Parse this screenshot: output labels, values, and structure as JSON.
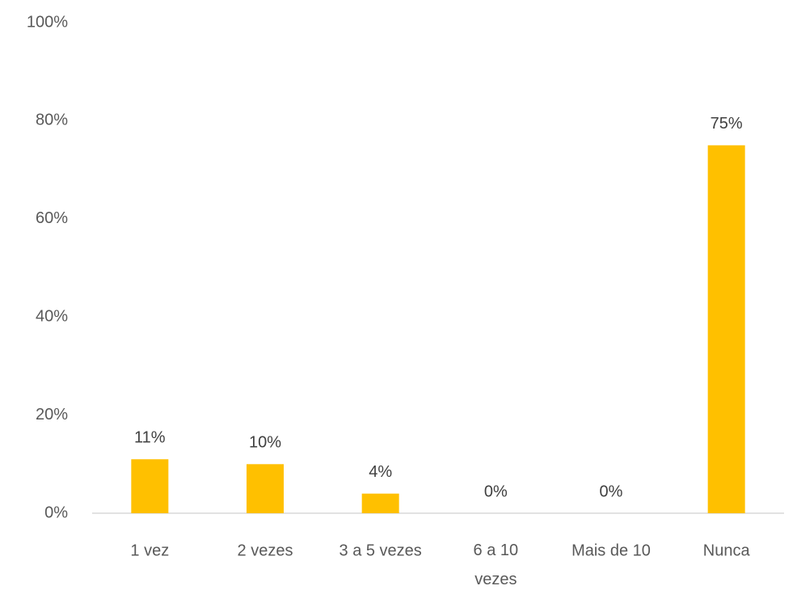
{
  "chart_data": {
    "type": "bar",
    "categories": [
      "1 vez",
      "2 vezes",
      "3 a 5 vezes",
      "6 a 10 vezes",
      "Mais de 10",
      "Nunca"
    ],
    "values": [
      11,
      10,
      4,
      0,
      0,
      75
    ],
    "value_labels": [
      "11%",
      "10%",
      "4%",
      "0%",
      "0%",
      "75%"
    ],
    "color": "#ffc000",
    "ylim": [
      0,
      100
    ],
    "yticks": [
      {
        "value": 0,
        "label": "0%"
      },
      {
        "value": 20,
        "label": "20%"
      },
      {
        "value": 40,
        "label": "40%"
      },
      {
        "value": 60,
        "label": "60%"
      },
      {
        "value": 80,
        "label": "80%"
      },
      {
        "value": 100,
        "label": "100%"
      }
    ],
    "grid": false
  }
}
